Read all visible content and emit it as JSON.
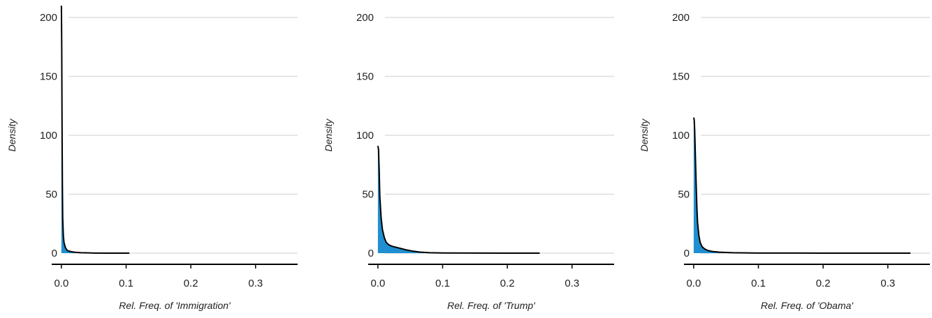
{
  "style": {
    "fill_color": "#1f8fd1",
    "line_color": "#000000",
    "grid_color": "#dddddd",
    "axis_color": "#000000"
  },
  "chart_data": [
    {
      "type": "area",
      "xlabel": "Rel. Freq. of 'Immigration'",
      "ylabel": "Density",
      "xlim": [
        -0.015,
        0.365
      ],
      "ylim": [
        0,
        210
      ],
      "xticks": [
        0.0,
        0.1,
        0.2,
        0.3
      ],
      "xtick_labels": [
        "0.0",
        "0.1",
        "0.2",
        "0.3"
      ],
      "yticks": [
        0,
        50,
        100,
        150,
        200
      ],
      "ytick_labels": [
        "0",
        "50",
        "100",
        "150",
        "200"
      ],
      "grid": "horizontal",
      "x": [
        0.0,
        0.0005,
        0.001,
        0.0015,
        0.002,
        0.003,
        0.004,
        0.006,
        0.008,
        0.01,
        0.015,
        0.02,
        0.03,
        0.05,
        0.07,
        0.105
      ],
      "y": [
        210,
        175,
        110,
        60,
        30,
        15,
        9,
        5,
        3,
        2,
        1.3,
        0.8,
        0.4,
        0.1,
        0.03,
        0.0
      ]
    },
    {
      "type": "area",
      "xlabel": "Rel. Freq. of 'Trump'",
      "ylabel": "Density",
      "xlim": [
        -0.015,
        0.365
      ],
      "ylim": [
        0,
        210
      ],
      "xticks": [
        0.0,
        0.1,
        0.2,
        0.3
      ],
      "xtick_labels": [
        "0.0",
        "0.1",
        "0.2",
        "0.3"
      ],
      "yticks": [
        0,
        50,
        100,
        150,
        200
      ],
      "ytick_labels": [
        "0",
        "50",
        "100",
        "150",
        "200"
      ],
      "grid": "horizontal",
      "x": [
        0.0,
        0.001,
        0.002,
        0.003,
        0.005,
        0.007,
        0.01,
        0.013,
        0.017,
        0.022,
        0.028,
        0.035,
        0.045,
        0.055,
        0.065,
        0.08,
        0.1,
        0.15,
        0.2,
        0.25
      ],
      "y": [
        91,
        88,
        70,
        48,
        30,
        20,
        13,
        9,
        7,
        5.8,
        5,
        4,
        2.6,
        1.6,
        0.9,
        0.4,
        0.15,
        0.05,
        0.02,
        0.0
      ]
    },
    {
      "type": "area",
      "xlabel": "Rel. Freq. of 'Obama'",
      "ylabel": "Density",
      "xlim": [
        -0.015,
        0.365
      ],
      "ylim": [
        0,
        210
      ],
      "xticks": [
        0.0,
        0.1,
        0.2,
        0.3
      ],
      "xtick_labels": [
        "0.0",
        "0.1",
        "0.2",
        "0.3"
      ],
      "yticks": [
        0,
        50,
        100,
        150,
        200
      ],
      "ytick_labels": [
        "0",
        "50",
        "100",
        "150",
        "200"
      ],
      "grid": "horizontal",
      "x": [
        0.0,
        0.0008,
        0.0015,
        0.002,
        0.003,
        0.004,
        0.005,
        0.006,
        0.008,
        0.01,
        0.013,
        0.017,
        0.022,
        0.03,
        0.04,
        0.06,
        0.1,
        0.2,
        0.335
      ],
      "y": [
        115,
        113,
        105,
        95,
        75,
        55,
        38,
        26,
        15,
        9,
        5.5,
        3.5,
        2.2,
        1.3,
        0.8,
        0.4,
        0.1,
        0.02,
        0.0
      ]
    }
  ]
}
